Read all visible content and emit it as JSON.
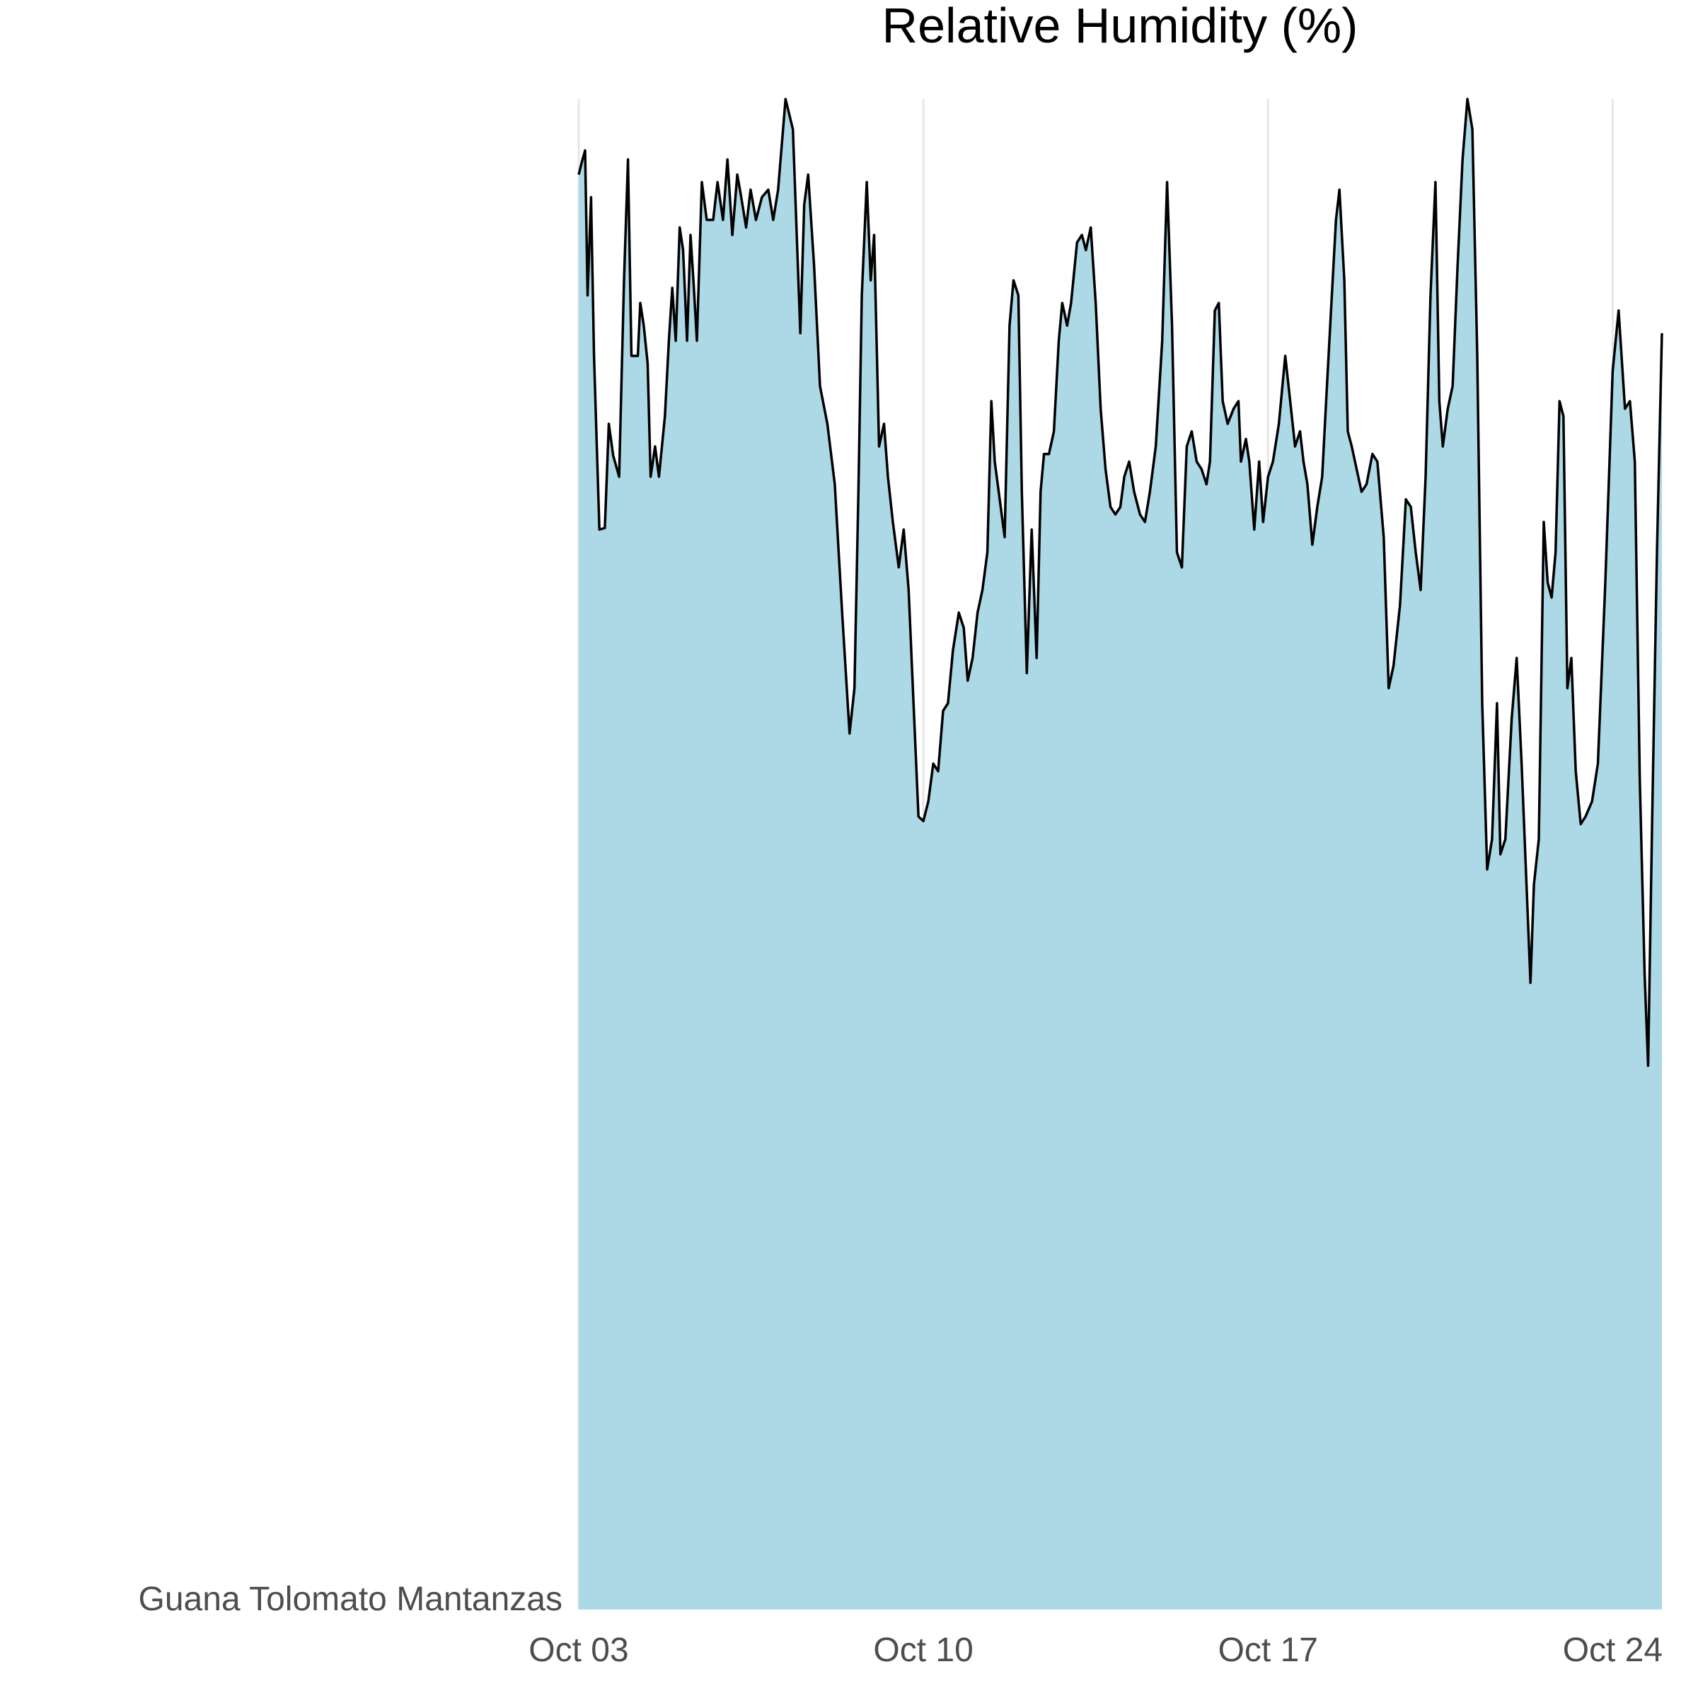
{
  "chart_data": {
    "type": "area",
    "title": "Relative Humidity (%)",
    "xlabel": "",
    "ylabel": "",
    "series_label": "Guana Tolomato Mantanzas",
    "x_ticks": [
      "Oct 03",
      "Oct 10",
      "Oct 17",
      "Oct 24"
    ],
    "x_tick_days": [
      0,
      7,
      14,
      21
    ],
    "x_range_days": [
      0,
      22.0
    ],
    "grid": "vertical-major",
    "legend": "none",
    "fill_color": "#add8e6",
    "line_color": "#000000",
    "ylim": [
      0,
      100
    ],
    "points": [
      [
        0.0,
        95.0
      ],
      [
        0.06,
        95.8
      ],
      [
        0.13,
        96.6
      ],
      [
        0.18,
        87.0
      ],
      [
        0.25,
        93.5
      ],
      [
        0.31,
        83.0
      ],
      [
        0.42,
        71.5
      ],
      [
        0.53,
        71.6
      ],
      [
        0.61,
        78.5
      ],
      [
        0.7,
        76.4
      ],
      [
        0.82,
        75.0
      ],
      [
        0.92,
        88.0
      ],
      [
        1.0,
        96.0
      ],
      [
        1.07,
        83.0
      ],
      [
        1.2,
        83.0
      ],
      [
        1.25,
        86.5
      ],
      [
        1.32,
        85.0
      ],
      [
        1.4,
        82.5
      ],
      [
        1.46,
        75.0
      ],
      [
        1.55,
        77.0
      ],
      [
        1.63,
        75.0
      ],
      [
        1.75,
        79.0
      ],
      [
        1.83,
        84.0
      ],
      [
        1.9,
        87.5
      ],
      [
        1.97,
        84.0
      ],
      [
        2.05,
        91.5
      ],
      [
        2.12,
        90.0
      ],
      [
        2.2,
        84.0
      ],
      [
        2.27,
        91.0
      ],
      [
        2.33,
        88.0
      ],
      [
        2.4,
        84.0
      ],
      [
        2.5,
        94.5
      ],
      [
        2.6,
        92.0
      ],
      [
        2.73,
        92.0
      ],
      [
        2.82,
        94.5
      ],
      [
        2.93,
        92.0
      ],
      [
        3.02,
        96.0
      ],
      [
        3.12,
        91.0
      ],
      [
        3.22,
        95.0
      ],
      [
        3.3,
        93.5
      ],
      [
        3.4,
        91.5
      ],
      [
        3.49,
        94.0
      ],
      [
        3.6,
        92.0
      ],
      [
        3.72,
        93.5
      ],
      [
        3.85,
        94.0
      ],
      [
        3.95,
        92.0
      ],
      [
        4.05,
        94.0
      ],
      [
        4.2,
        100.0
      ],
      [
        4.35,
        98.0
      ],
      [
        4.5,
        84.5
      ],
      [
        4.58,
        93.0
      ],
      [
        4.66,
        95.0
      ],
      [
        4.78,
        89.0
      ],
      [
        4.9,
        81.0
      ],
      [
        5.05,
        78.5
      ],
      [
        5.2,
        74.5
      ],
      [
        5.35,
        66.0
      ],
      [
        5.5,
        58.0
      ],
      [
        5.6,
        61.0
      ],
      [
        5.68,
        74.0
      ],
      [
        5.75,
        87.0
      ],
      [
        5.85,
        94.5
      ],
      [
        5.93,
        88.0
      ],
      [
        6.0,
        91.0
      ],
      [
        6.1,
        77.0
      ],
      [
        6.2,
        78.5
      ],
      [
        6.28,
        75.0
      ],
      [
        6.38,
        72.0
      ],
      [
        6.5,
        69.0
      ],
      [
        6.6,
        71.5
      ],
      [
        6.7,
        67.5
      ],
      [
        6.8,
        60.0
      ],
      [
        6.9,
        52.5
      ],
      [
        7.0,
        52.2
      ],
      [
        7.1,
        53.5
      ],
      [
        7.2,
        56.0
      ],
      [
        7.3,
        55.5
      ],
      [
        7.4,
        59.5
      ],
      [
        7.5,
        60.0
      ],
      [
        7.6,
        63.5
      ],
      [
        7.72,
        66.0
      ],
      [
        7.82,
        65.0
      ],
      [
        7.9,
        61.5
      ],
      [
        8.0,
        63.0
      ],
      [
        8.1,
        66.0
      ],
      [
        8.2,
        67.5
      ],
      [
        8.3,
        70.0
      ],
      [
        8.38,
        80.0
      ],
      [
        8.45,
        76.0
      ],
      [
        8.55,
        73.5
      ],
      [
        8.65,
        71.0
      ],
      [
        8.75,
        85.0
      ],
      [
        8.83,
        88.0
      ],
      [
        8.93,
        87.0
      ],
      [
        9.0,
        74.0
      ],
      [
        9.1,
        62.0
      ],
      [
        9.2,
        71.5
      ],
      [
        9.3,
        63.0
      ],
      [
        9.38,
        74.0
      ],
      [
        9.45,
        76.5
      ],
      [
        9.55,
        76.5
      ],
      [
        9.65,
        78.0
      ],
      [
        9.75,
        84.0
      ],
      [
        9.82,
        86.5
      ],
      [
        9.92,
        85.0
      ],
      [
        10.0,
        86.5
      ],
      [
        10.12,
        90.5
      ],
      [
        10.22,
        91.0
      ],
      [
        10.3,
        90.0
      ],
      [
        10.4,
        91.5
      ],
      [
        10.5,
        86.5
      ],
      [
        10.6,
        79.5
      ],
      [
        10.7,
        75.5
      ],
      [
        10.8,
        73.0
      ],
      [
        10.9,
        72.5
      ],
      [
        11.0,
        73.0
      ],
      [
        11.08,
        75.0
      ],
      [
        11.18,
        76.0
      ],
      [
        11.28,
        74.0
      ],
      [
        11.4,
        72.5
      ],
      [
        11.5,
        72.0
      ],
      [
        11.6,
        74.0
      ],
      [
        11.72,
        77.0
      ],
      [
        11.85,
        84.0
      ],
      [
        11.95,
        94.5
      ],
      [
        12.05,
        85.0
      ],
      [
        12.15,
        70.0
      ],
      [
        12.25,
        69.0
      ],
      [
        12.35,
        77.0
      ],
      [
        12.45,
        78.0
      ],
      [
        12.55,
        76.0
      ],
      [
        12.65,
        75.5
      ],
      [
        12.75,
        74.5
      ],
      [
        12.82,
        76.0
      ],
      [
        12.92,
        86.0
      ],
      [
        13.0,
        86.5
      ],
      [
        13.08,
        80.0
      ],
      [
        13.18,
        78.5
      ],
      [
        13.3,
        79.5
      ],
      [
        13.4,
        80.0
      ],
      [
        13.45,
        76.0
      ],
      [
        13.55,
        77.5
      ],
      [
        13.62,
        76.0
      ],
      [
        13.72,
        71.5
      ],
      [
        13.82,
        76.0
      ],
      [
        13.9,
        72.0
      ],
      [
        14.0,
        75.0
      ],
      [
        14.1,
        76.0
      ],
      [
        14.22,
        78.5
      ],
      [
        14.35,
        83.0
      ],
      [
        14.45,
        80.0
      ],
      [
        14.55,
        77.0
      ],
      [
        14.65,
        78.0
      ],
      [
        14.72,
        76.0
      ],
      [
        14.8,
        74.5
      ],
      [
        14.9,
        70.5
      ],
      [
        15.0,
        73.0
      ],
      [
        15.1,
        75.0
      ],
      [
        15.18,
        80.0
      ],
      [
        15.28,
        86.0
      ],
      [
        15.38,
        92.0
      ],
      [
        15.45,
        94.0
      ],
      [
        15.55,
        88.0
      ],
      [
        15.62,
        78.0
      ],
      [
        15.7,
        77.0
      ],
      [
        15.8,
        75.5
      ],
      [
        15.9,
        74.0
      ],
      [
        16.0,
        74.5
      ],
      [
        16.12,
        76.5
      ],
      [
        16.22,
        76.0
      ],
      [
        16.35,
        71.0
      ],
      [
        16.45,
        61.0
      ],
      [
        16.55,
        62.5
      ],
      [
        16.68,
        66.5
      ],
      [
        16.8,
        73.5
      ],
      [
        16.9,
        73.0
      ],
      [
        17.0,
        70.0
      ],
      [
        17.1,
        67.5
      ],
      [
        17.2,
        75.0
      ],
      [
        17.3,
        87.0
      ],
      [
        17.4,
        94.5
      ],
      [
        17.48,
        80.0
      ],
      [
        17.55,
        77.0
      ],
      [
        17.65,
        79.5
      ],
      [
        17.75,
        81.0
      ],
      [
        17.85,
        89.0
      ],
      [
        17.95,
        96.0
      ],
      [
        18.05,
        100.0
      ],
      [
        18.15,
        98.0
      ],
      [
        18.25,
        83.0
      ],
      [
        18.35,
        60.0
      ],
      [
        18.45,
        49.0
      ],
      [
        18.55,
        51.0
      ],
      [
        18.65,
        60.0
      ],
      [
        18.72,
        50.0
      ],
      [
        18.82,
        51.0
      ],
      [
        18.95,
        59.0
      ],
      [
        19.05,
        63.0
      ],
      [
        19.15,
        56.0
      ],
      [
        19.25,
        48.0
      ],
      [
        19.33,
        41.5
      ],
      [
        19.4,
        48.0
      ],
      [
        19.5,
        51.0
      ],
      [
        19.6,
        72.0
      ],
      [
        19.68,
        68.0
      ],
      [
        19.76,
        67.0
      ],
      [
        19.84,
        70.0
      ],
      [
        19.92,
        80.0
      ],
      [
        20.0,
        79.0
      ],
      [
        20.08,
        61.0
      ],
      [
        20.16,
        63.0
      ],
      [
        20.25,
        55.5
      ],
      [
        20.35,
        52.0
      ],
      [
        20.45,
        52.5
      ],
      [
        20.58,
        53.5
      ],
      [
        20.7,
        56.0
      ],
      [
        20.85,
        68.0
      ],
      [
        21.0,
        82.0
      ],
      [
        21.12,
        86.0
      ],
      [
        21.25,
        79.5
      ],
      [
        21.35,
        80.0
      ],
      [
        21.45,
        76.0
      ],
      [
        21.55,
        55.0
      ],
      [
        21.65,
        42.0
      ],
      [
        21.72,
        36.0
      ],
      [
        21.8,
        52.0
      ],
      [
        21.9,
        70.0
      ],
      [
        22.0,
        84.5
      ]
    ]
  }
}
